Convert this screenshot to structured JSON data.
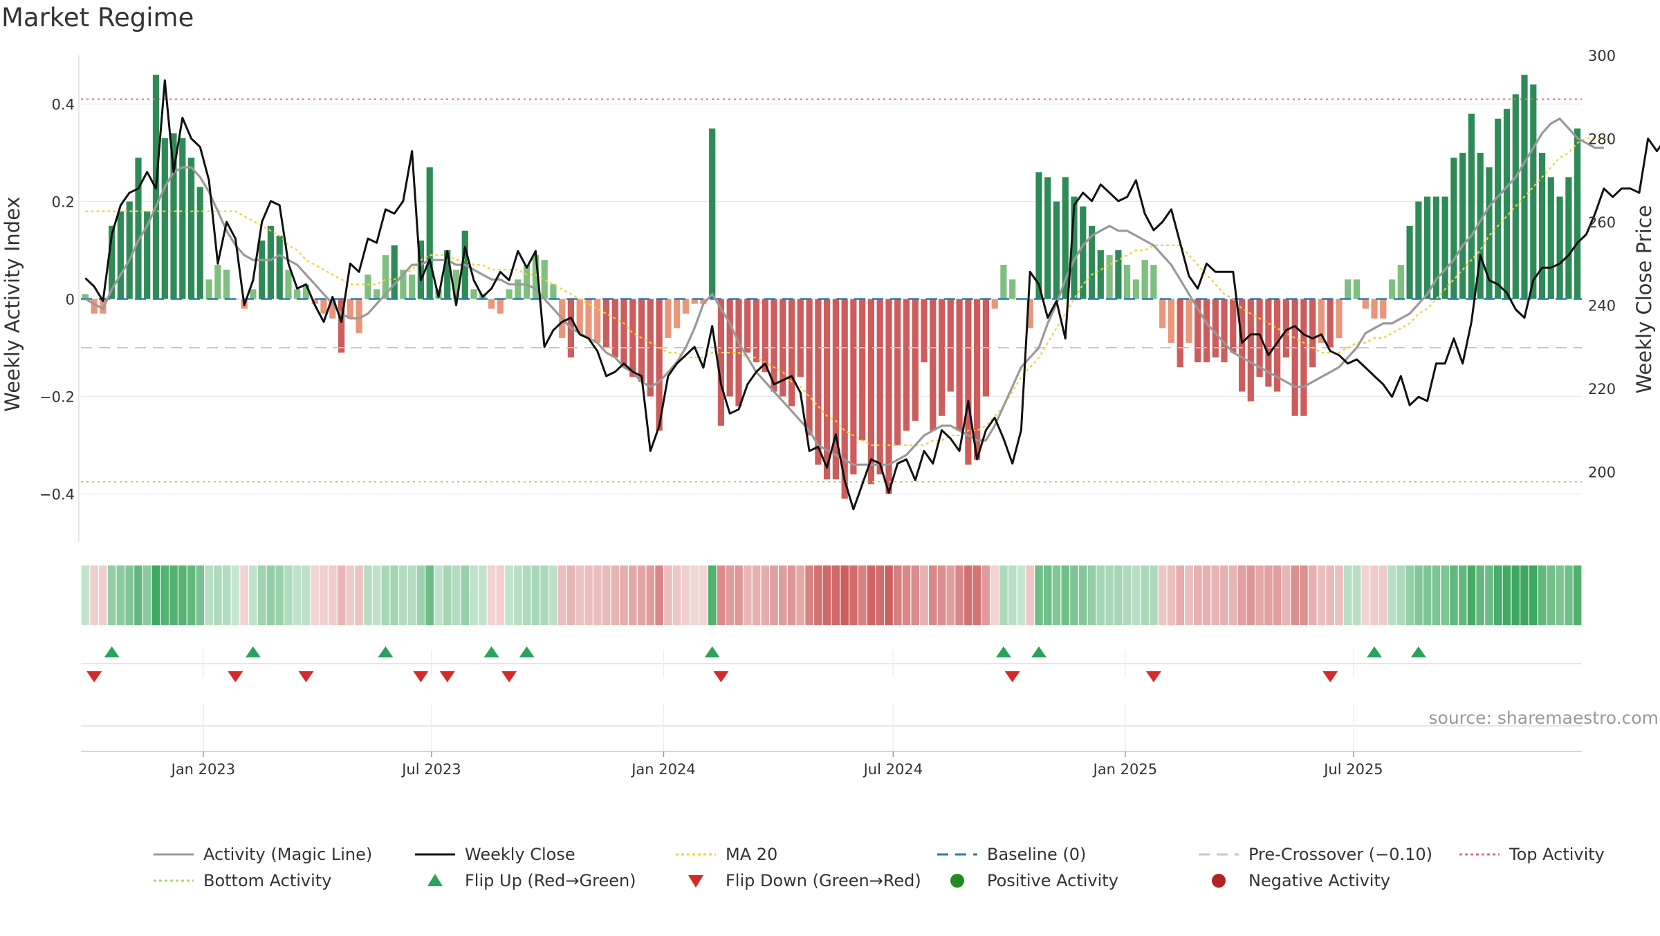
{
  "chart_data": {
    "type": "bar",
    "title": "Market Regime",
    "ylabel_left": "Weekly Activity Index",
    "ylabel_right": "Weekly Close Price",
    "source": "source: sharemaestro.com",
    "ylim_left": [
      -0.5,
      0.5
    ],
    "ylim_right": [
      183,
      300
    ],
    "yticks_left": [
      "0.4",
      "0.2",
      "0",
      "−0.2",
      "−0.4"
    ],
    "yticks_left_values": [
      0.4,
      0.2,
      0,
      -0.2,
      -0.4
    ],
    "yticks_right": [
      "300",
      "280",
      "260",
      "240",
      "220",
      "200"
    ],
    "yticks_right_values": [
      300,
      280,
      260,
      240,
      220,
      200
    ],
    "xticks": [
      "Jan 2023",
      "Jul 2023",
      "Jan 2024",
      "Jul 2024",
      "Jan 2025",
      "Jul 2025"
    ],
    "xticks_dates": [
      "2023-01-01",
      "2023-07-01",
      "2024-01-01",
      "2024-07-01",
      "2025-01-01",
      "2025-07-01"
    ],
    "x_start": "2022-09-26",
    "reference_lines": {
      "top_activity": 0.41,
      "bottom_activity": -0.375,
      "pre_crossover": -0.1,
      "baseline": 0
    },
    "weekly": {
      "activity": [
        0.01,
        -0.03,
        -0.03,
        0.15,
        0.18,
        0.2,
        0.29,
        0.18,
        0.46,
        0.33,
        0.34,
        0.33,
        0.29,
        0.23,
        0.04,
        0.07,
        0.06,
        0.0,
        -0.02,
        0.02,
        0.12,
        0.15,
        0.13,
        0.06,
        0.02,
        0.03,
        -0.01,
        -0.03,
        -0.04,
        -0.11,
        -0.04,
        -0.07,
        0.05,
        0.02,
        0.09,
        0.11,
        0.06,
        0.05,
        0.12,
        0.27,
        0.02,
        0.1,
        0.06,
        0.14,
        0.02,
        0.01,
        -0.02,
        -0.03,
        0.02,
        0.04,
        0.07,
        0.09,
        0.08,
        0.03,
        -0.08,
        -0.12,
        -0.07,
        -0.08,
        -0.09,
        -0.1,
        -0.12,
        -0.14,
        -0.16,
        -0.17,
        -0.2,
        -0.27,
        -0.08,
        -0.06,
        -0.03,
        -0.01,
        -0.01,
        0.35,
        -0.26,
        -0.2,
        -0.22,
        -0.11,
        -0.13,
        -0.15,
        -0.19,
        -0.2,
        -0.22,
        -0.16,
        -0.28,
        -0.34,
        -0.37,
        -0.37,
        -0.41,
        -0.36,
        -0.29,
        -0.38,
        -0.36,
        -0.4,
        -0.3,
        -0.27,
        -0.25,
        -0.13,
        -0.27,
        -0.24,
        -0.19,
        -0.27,
        -0.34,
        -0.33,
        -0.2,
        -0.02,
        0.07,
        0.04,
        0.0,
        -0.06,
        0.26,
        0.25,
        0.2,
        0.25,
        0.21,
        0.19,
        0.15,
        0.1,
        0.09,
        0.1,
        0.07,
        0.04,
        0.08,
        0.07,
        -0.06,
        -0.09,
        -0.14,
        -0.09,
        -0.13,
        -0.13,
        -0.12,
        -0.13,
        -0.11,
        -0.19,
        -0.21,
        -0.16,
        -0.18,
        -0.19,
        -0.12,
        -0.24,
        -0.24,
        -0.14,
        -0.09,
        -0.1,
        -0.08,
        0.04,
        0.04,
        -0.02,
        -0.04,
        -0.04,
        0.04,
        0.07,
        0.15,
        0.2,
        0.21,
        0.21,
        0.21,
        0.29,
        0.3,
        0.38,
        0.3,
        0.27,
        0.37,
        0.39,
        0.42,
        0.46,
        0.44,
        0.3,
        0.25,
        0.21,
        0.25,
        0.35
      ],
      "close": [
        246.5,
        244.5,
        241,
        257,
        264,
        267,
        268,
        272,
        268,
        294,
        272,
        285,
        280,
        278,
        270,
        250,
        260,
        256,
        240,
        246,
        260,
        265,
        264,
        250,
        244,
        245,
        240,
        236,
        242,
        236,
        250,
        248,
        256,
        255,
        263,
        262,
        265,
        277,
        246,
        251,
        242,
        253,
        240,
        254,
        246,
        242,
        244,
        248,
        246,
        253,
        249,
        253,
        230,
        234,
        236,
        237,
        233,
        232,
        229,
        223,
        224,
        226,
        224,
        223,
        205,
        211,
        223,
        226,
        228,
        230,
        225,
        235,
        221,
        214,
        215,
        221,
        224,
        226,
        221,
        222,
        223,
        219,
        205,
        206,
        201,
        209,
        198,
        191,
        197,
        203,
        202,
        195,
        202,
        203,
        198,
        205,
        202,
        210,
        208,
        205,
        217,
        203,
        210,
        213,
        208,
        202,
        210,
        248,
        245,
        237,
        241,
        232,
        264,
        267,
        265,
        269,
        267,
        265,
        266,
        270,
        262,
        258,
        260,
        263,
        255,
        247,
        244,
        250,
        248,
        248,
        248,
        231,
        233,
        233,
        228,
        231,
        234,
        235,
        233,
        232,
        233,
        229,
        228,
        226,
        227,
        225,
        223,
        221,
        218,
        223,
        216,
        218,
        217,
        226,
        226,
        232,
        226,
        236,
        252,
        246,
        245,
        243,
        239,
        237,
        246,
        249,
        249,
        250,
        252,
        255,
        257,
        262,
        268,
        266,
        268,
        268,
        267,
        280,
        277,
        280,
        275,
        285,
        282,
        293,
        295,
        275,
        275,
        286,
        291
      ],
      "magic_line": [
        0.0,
        -0.01,
        -0.02,
        0.02,
        0.05,
        0.08,
        0.12,
        0.15,
        0.19,
        0.23,
        0.26,
        0.27,
        0.27,
        0.25,
        0.22,
        0.18,
        0.14,
        0.11,
        0.09,
        0.08,
        0.08,
        0.08,
        0.09,
        0.08,
        0.07,
        0.05,
        0.03,
        0.01,
        -0.01,
        -0.03,
        -0.04,
        -0.04,
        -0.03,
        -0.01,
        0.01,
        0.03,
        0.05,
        0.07,
        0.07,
        0.08,
        0.08,
        0.08,
        0.07,
        0.07,
        0.06,
        0.05,
        0.04,
        0.04,
        0.03,
        0.03,
        0.03,
        0.02,
        0.0,
        -0.02,
        -0.04,
        -0.06,
        -0.07,
        -0.08,
        -0.09,
        -0.11,
        -0.12,
        -0.14,
        -0.15,
        -0.17,
        -0.18,
        -0.17,
        -0.15,
        -0.13,
        -0.1,
        -0.06,
        -0.01,
        0.01,
        -0.02,
        -0.05,
        -0.09,
        -0.12,
        -0.15,
        -0.17,
        -0.19,
        -0.21,
        -0.23,
        -0.25,
        -0.27,
        -0.3,
        -0.31,
        -0.32,
        -0.33,
        -0.34,
        -0.34,
        -0.34,
        -0.34,
        -0.34,
        -0.33,
        -0.32,
        -0.3,
        -0.28,
        -0.27,
        -0.26,
        -0.26,
        -0.27,
        -0.28,
        -0.29,
        -0.29,
        -0.26,
        -0.22,
        -0.18,
        -0.14,
        -0.12,
        -0.1,
        -0.05,
        -0.01,
        0.04,
        0.08,
        0.11,
        0.13,
        0.14,
        0.15,
        0.14,
        0.14,
        0.13,
        0.12,
        0.11,
        0.09,
        0.07,
        0.04,
        0.01,
        -0.02,
        -0.05,
        -0.07,
        -0.09,
        -0.11,
        -0.12,
        -0.13,
        -0.14,
        -0.15,
        -0.16,
        -0.17,
        -0.18,
        -0.18,
        -0.17,
        -0.16,
        -0.15,
        -0.14,
        -0.12,
        -0.1,
        -0.07,
        -0.06,
        -0.05,
        -0.05,
        -0.04,
        -0.03,
        -0.01,
        0.01,
        0.04,
        0.06,
        0.08,
        0.11,
        0.13,
        0.16,
        0.19,
        0.21,
        0.23,
        0.25,
        0.28,
        0.31,
        0.34,
        0.36,
        0.37,
        0.35,
        0.33,
        0.32,
        0.31,
        0.31
      ],
      "ma20": [
        0.18,
        0.18,
        0.18,
        0.18,
        0.18,
        0.18,
        0.18,
        0.18,
        0.18,
        0.18,
        0.18,
        0.18,
        0.18,
        0.18,
        0.18,
        0.18,
        0.18,
        0.18,
        0.17,
        0.16,
        0.15,
        0.14,
        0.13,
        0.11,
        0.1,
        0.08,
        0.07,
        0.06,
        0.05,
        0.04,
        0.03,
        0.03,
        0.03,
        0.03,
        0.04,
        0.04,
        0.05,
        0.06,
        0.08,
        0.09,
        0.09,
        0.09,
        0.08,
        0.08,
        0.07,
        0.07,
        0.06,
        0.06,
        0.06,
        0.06,
        0.05,
        0.05,
        0.04,
        0.03,
        0.02,
        0.01,
        0.0,
        -0.01,
        -0.02,
        -0.03,
        -0.04,
        -0.05,
        -0.07,
        -0.08,
        -0.09,
        -0.1,
        -0.11,
        -0.11,
        -0.12,
        -0.12,
        -0.12,
        -0.11,
        -0.11,
        -0.11,
        -0.11,
        -0.12,
        -0.12,
        -0.13,
        -0.14,
        -0.15,
        -0.17,
        -0.18,
        -0.2,
        -0.22,
        -0.24,
        -0.25,
        -0.27,
        -0.28,
        -0.29,
        -0.3,
        -0.3,
        -0.3,
        -0.3,
        -0.3,
        -0.3,
        -0.3,
        -0.29,
        -0.29,
        -0.28,
        -0.28,
        -0.27,
        -0.27,
        -0.26,
        -0.24,
        -0.22,
        -0.19,
        -0.16,
        -0.14,
        -0.12,
        -0.09,
        -0.06,
        -0.03,
        0.0,
        0.03,
        0.05,
        0.06,
        0.07,
        0.08,
        0.09,
        0.1,
        0.1,
        0.11,
        0.11,
        0.11,
        0.11,
        0.09,
        0.07,
        0.05,
        0.03,
        0.01,
        0.0,
        -0.02,
        -0.03,
        -0.04,
        -0.05,
        -0.06,
        -0.07,
        -0.08,
        -0.09,
        -0.1,
        -0.11,
        -0.11,
        -0.11,
        -0.1,
        -0.09,
        -0.09,
        -0.08,
        -0.08,
        -0.07,
        -0.06,
        -0.05,
        -0.03,
        -0.02,
        0.0,
        0.02,
        0.04,
        0.06,
        0.08,
        0.1,
        0.13,
        0.15,
        0.17,
        0.19,
        0.21,
        0.23,
        0.25,
        0.27,
        0.29,
        0.3,
        0.32,
        0.33,
        0.33,
        0.33,
        0.32
      ]
    },
    "flip_up_weeks": [
      3,
      19,
      34,
      46,
      50,
      71,
      104,
      108,
      146,
      151
    ],
    "flip_down_weeks": [
      1,
      17,
      25,
      38,
      41,
      48,
      72,
      105,
      121,
      141
    ],
    "series": [
      {
        "name": "Activity (Magic Line)",
        "color": "#999999",
        "style": "solid"
      },
      {
        "name": "Weekly Close",
        "color": "#111111",
        "style": "solid"
      },
      {
        "name": "MA 20",
        "color": "#f2d33a",
        "style": "dotted"
      },
      {
        "name": "Baseline (0)",
        "color": "#2a7ab0",
        "style": "dashed"
      },
      {
        "name": "Pre-Crossover (−0.10)",
        "color": "#c8c8c8",
        "style": "dashed"
      },
      {
        "name": "Top Activity",
        "color": "#e0707a",
        "style": "dotted"
      },
      {
        "name": "Bottom Activity",
        "color": "#a8d86e",
        "style": "dotted"
      },
      {
        "name": "Flip Up (Red→Green)",
        "color": "#27a35a",
        "style": "triangle-up"
      },
      {
        "name": "Flip Down (Green→Red)",
        "color": "#d62a2a",
        "style": "triangle-down"
      },
      {
        "name": "Positive Activity",
        "color": "#228b22",
        "style": "circle"
      },
      {
        "name": "Negative Activity",
        "color": "#b22222",
        "style": "circle"
      }
    ],
    "colors": {
      "pos_strong": "#2e8b57",
      "pos_weak": "#7fbf7f",
      "neg_strong": "#cd5c5c",
      "neg_weak": "#e9967a",
      "grid": "#e9e9e9"
    },
    "legend_placement": "bottom"
  }
}
